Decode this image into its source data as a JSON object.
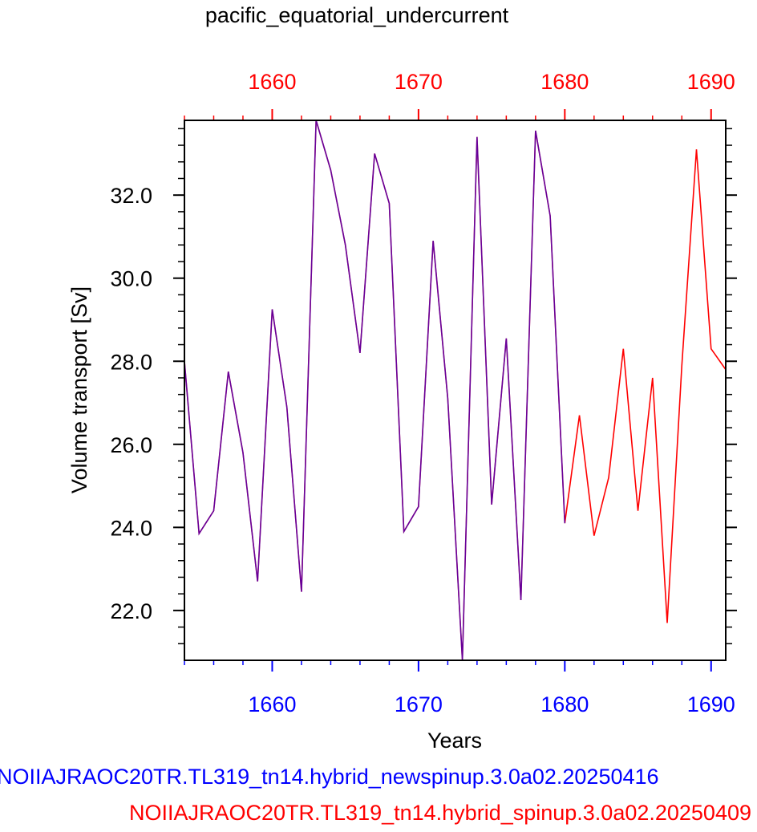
{
  "chart_data": {
    "type": "line",
    "title": "pacific_equatorial_undercurrent",
    "xlabel": "Years",
    "ylabel": "Volume transport [Sv]",
    "xlim": [
      1654,
      1691
    ],
    "ylim": [
      20.8,
      33.8
    ],
    "x_ticks_major": [
      1660,
      1670,
      1680,
      1690
    ],
    "x_tick_labels": [
      "1660",
      "1670",
      "1680",
      "1690"
    ],
    "y_ticks_major": [
      22,
      24,
      26,
      28,
      30,
      32
    ],
    "y_tick_labels": [
      "22.0",
      "24.0",
      "26.0",
      "28.0",
      "30.0",
      "32.0"
    ],
    "bottom_axis_color": "#0000ff",
    "top_axis_color": "#ff0000",
    "series": [
      {
        "name": "NOIIAJRAOC20TR.TL319_tn14.hybrid_newspinup.3.0a02.20250416",
        "color": "#0000ff",
        "x": [
          1654,
          1655,
          1656,
          1657,
          1658,
          1659,
          1660,
          1661,
          1662,
          1663,
          1664,
          1665,
          1666,
          1667,
          1668,
          1669,
          1670,
          1671,
          1672,
          1673,
          1674,
          1675,
          1676,
          1677,
          1678,
          1679,
          1680
        ],
        "y": [
          28.0,
          23.85,
          24.4,
          27.75,
          25.8,
          22.7,
          29.25,
          26.9,
          22.45,
          33.8,
          32.6,
          30.8,
          28.2,
          33.0,
          31.8,
          23.9,
          24.5,
          30.9,
          27.1,
          20.8,
          33.4,
          24.55,
          28.55,
          22.25,
          33.55,
          31.5,
          24.1
        ]
      },
      {
        "name": "NOIIAJRAOC20TR.TL319_tn14.hybrid_spinup.3.0a02.20250409",
        "color": "#ff0000",
        "x": [
          1654,
          1655,
          1656,
          1657,
          1658,
          1659,
          1660,
          1661,
          1662,
          1663,
          1664,
          1665,
          1666,
          1667,
          1668,
          1669,
          1670,
          1671,
          1672,
          1673,
          1674,
          1675,
          1676,
          1677,
          1678,
          1679,
          1680,
          1681,
          1682,
          1683,
          1684,
          1685,
          1686,
          1687,
          1688,
          1689,
          1690,
          1691
        ],
        "y": [
          28.0,
          23.85,
          24.4,
          27.75,
          25.8,
          22.7,
          29.25,
          26.9,
          22.45,
          33.8,
          32.6,
          30.8,
          28.2,
          33.0,
          31.8,
          23.9,
          24.5,
          30.9,
          27.1,
          20.8,
          33.4,
          24.55,
          28.55,
          22.25,
          33.55,
          31.5,
          24.1,
          26.7,
          23.8,
          25.2,
          28.3,
          24.4,
          27.6,
          21.7,
          27.9,
          33.1,
          28.3,
          27.8
        ]
      }
    ]
  }
}
